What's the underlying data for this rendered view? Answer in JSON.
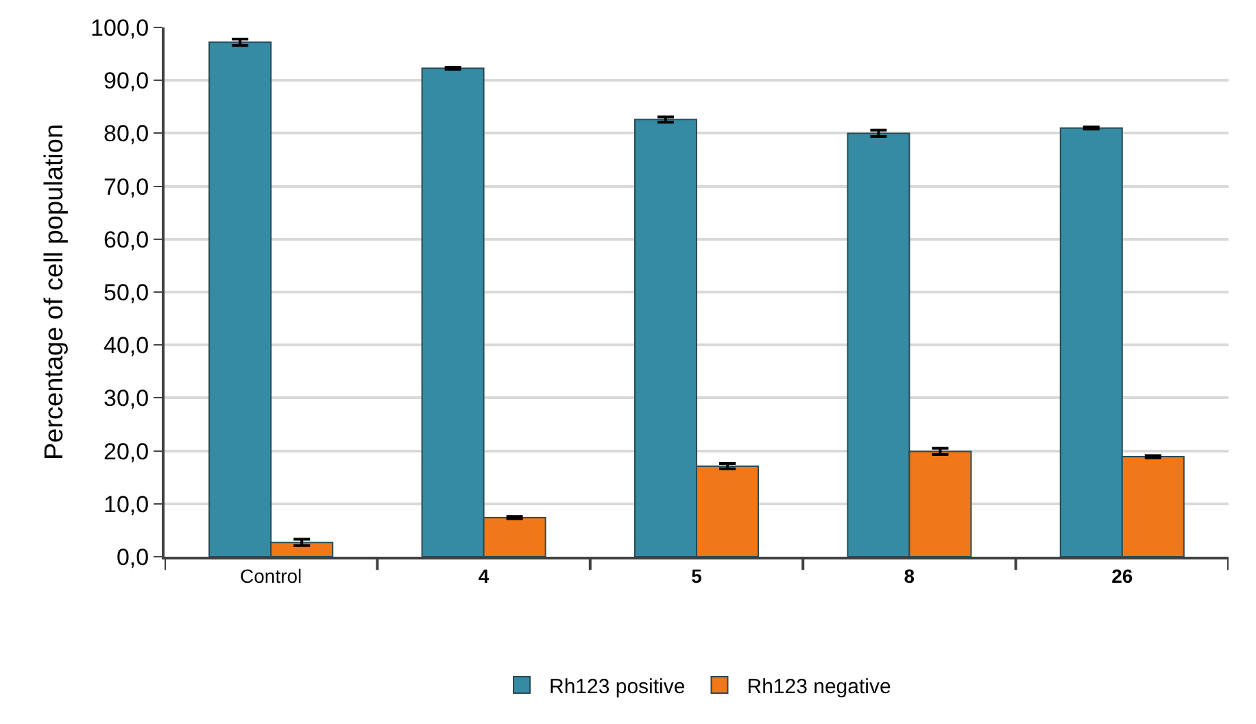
{
  "chart_data": {
    "type": "bar",
    "ylabel": "Percentage of cell population",
    "categories": [
      "Control",
      "4",
      "5",
      "8",
      "26"
    ],
    "series": [
      {
        "name": "Rh123 positive",
        "color": "#358ba3",
        "values": [
          97.2,
          92.3,
          82.6,
          80.0,
          81.0
        ],
        "errors": [
          0.6,
          0.2,
          0.5,
          0.6,
          0.2
        ]
      },
      {
        "name": "Rh123 negative",
        "color": "#f07818",
        "values": [
          2.7,
          7.4,
          17.1,
          19.9,
          18.9
        ],
        "errors": [
          0.6,
          0.2,
          0.5,
          0.6,
          0.2
        ]
      }
    ],
    "ylim": [
      0,
      100
    ],
    "yticks": [
      {
        "value": 0,
        "label": "0,0"
      },
      {
        "value": 10,
        "label": "10,0"
      },
      {
        "value": 20,
        "label": "20,0"
      },
      {
        "value": 30,
        "label": "30,0"
      },
      {
        "value": 40,
        "label": "40,0"
      },
      {
        "value": 50,
        "label": "50,0"
      },
      {
        "value": 60,
        "label": "60,0"
      },
      {
        "value": 70,
        "label": "70,0"
      },
      {
        "value": 80,
        "label": "80,0"
      },
      {
        "value": 90,
        "label": "90,0"
      },
      {
        "value": 100,
        "label": "100,0"
      }
    ],
    "grid": "y",
    "legend": "bottom"
  }
}
